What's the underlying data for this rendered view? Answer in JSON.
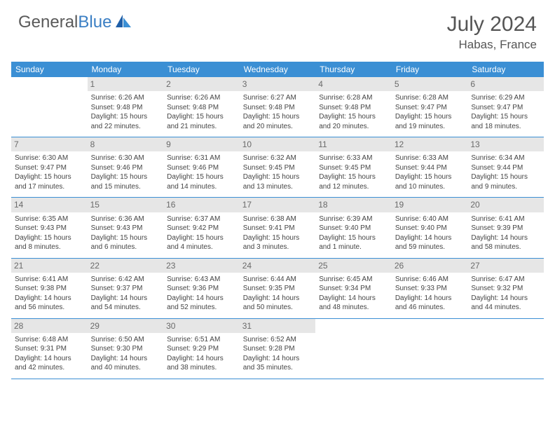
{
  "brand": {
    "name_a": "General",
    "name_b": "Blue"
  },
  "title": "July 2024",
  "location": "Habas, France",
  "colors": {
    "header_bg": "#3b8fd4",
    "header_text": "#ffffff",
    "daynum_bg": "#e6e6e6",
    "daynum_text": "#6a6a6a",
    "body_text": "#444444",
    "rule": "#3b8fd4",
    "brand_gray": "#5a5a5a",
    "brand_blue": "#3b7fc4"
  },
  "day_headers": [
    "Sunday",
    "Monday",
    "Tuesday",
    "Wednesday",
    "Thursday",
    "Friday",
    "Saturday"
  ],
  "weeks": [
    [
      {
        "n": "",
        "sunrise": "",
        "sunset": "",
        "daylight": ""
      },
      {
        "n": "1",
        "sunrise": "Sunrise: 6:26 AM",
        "sunset": "Sunset: 9:48 PM",
        "daylight": "Daylight: 15 hours and 22 minutes."
      },
      {
        "n": "2",
        "sunrise": "Sunrise: 6:26 AM",
        "sunset": "Sunset: 9:48 PM",
        "daylight": "Daylight: 15 hours and 21 minutes."
      },
      {
        "n": "3",
        "sunrise": "Sunrise: 6:27 AM",
        "sunset": "Sunset: 9:48 PM",
        "daylight": "Daylight: 15 hours and 20 minutes."
      },
      {
        "n": "4",
        "sunrise": "Sunrise: 6:28 AM",
        "sunset": "Sunset: 9:48 PM",
        "daylight": "Daylight: 15 hours and 20 minutes."
      },
      {
        "n": "5",
        "sunrise": "Sunrise: 6:28 AM",
        "sunset": "Sunset: 9:47 PM",
        "daylight": "Daylight: 15 hours and 19 minutes."
      },
      {
        "n": "6",
        "sunrise": "Sunrise: 6:29 AM",
        "sunset": "Sunset: 9:47 PM",
        "daylight": "Daylight: 15 hours and 18 minutes."
      }
    ],
    [
      {
        "n": "7",
        "sunrise": "Sunrise: 6:30 AM",
        "sunset": "Sunset: 9:47 PM",
        "daylight": "Daylight: 15 hours and 17 minutes."
      },
      {
        "n": "8",
        "sunrise": "Sunrise: 6:30 AM",
        "sunset": "Sunset: 9:46 PM",
        "daylight": "Daylight: 15 hours and 15 minutes."
      },
      {
        "n": "9",
        "sunrise": "Sunrise: 6:31 AM",
        "sunset": "Sunset: 9:46 PM",
        "daylight": "Daylight: 15 hours and 14 minutes."
      },
      {
        "n": "10",
        "sunrise": "Sunrise: 6:32 AM",
        "sunset": "Sunset: 9:45 PM",
        "daylight": "Daylight: 15 hours and 13 minutes."
      },
      {
        "n": "11",
        "sunrise": "Sunrise: 6:33 AM",
        "sunset": "Sunset: 9:45 PM",
        "daylight": "Daylight: 15 hours and 12 minutes."
      },
      {
        "n": "12",
        "sunrise": "Sunrise: 6:33 AM",
        "sunset": "Sunset: 9:44 PM",
        "daylight": "Daylight: 15 hours and 10 minutes."
      },
      {
        "n": "13",
        "sunrise": "Sunrise: 6:34 AM",
        "sunset": "Sunset: 9:44 PM",
        "daylight": "Daylight: 15 hours and 9 minutes."
      }
    ],
    [
      {
        "n": "14",
        "sunrise": "Sunrise: 6:35 AM",
        "sunset": "Sunset: 9:43 PM",
        "daylight": "Daylight: 15 hours and 8 minutes."
      },
      {
        "n": "15",
        "sunrise": "Sunrise: 6:36 AM",
        "sunset": "Sunset: 9:43 PM",
        "daylight": "Daylight: 15 hours and 6 minutes."
      },
      {
        "n": "16",
        "sunrise": "Sunrise: 6:37 AM",
        "sunset": "Sunset: 9:42 PM",
        "daylight": "Daylight: 15 hours and 4 minutes."
      },
      {
        "n": "17",
        "sunrise": "Sunrise: 6:38 AM",
        "sunset": "Sunset: 9:41 PM",
        "daylight": "Daylight: 15 hours and 3 minutes."
      },
      {
        "n": "18",
        "sunrise": "Sunrise: 6:39 AM",
        "sunset": "Sunset: 9:40 PM",
        "daylight": "Daylight: 15 hours and 1 minute."
      },
      {
        "n": "19",
        "sunrise": "Sunrise: 6:40 AM",
        "sunset": "Sunset: 9:40 PM",
        "daylight": "Daylight: 14 hours and 59 minutes."
      },
      {
        "n": "20",
        "sunrise": "Sunrise: 6:41 AM",
        "sunset": "Sunset: 9:39 PM",
        "daylight": "Daylight: 14 hours and 58 minutes."
      }
    ],
    [
      {
        "n": "21",
        "sunrise": "Sunrise: 6:41 AM",
        "sunset": "Sunset: 9:38 PM",
        "daylight": "Daylight: 14 hours and 56 minutes."
      },
      {
        "n": "22",
        "sunrise": "Sunrise: 6:42 AM",
        "sunset": "Sunset: 9:37 PM",
        "daylight": "Daylight: 14 hours and 54 minutes."
      },
      {
        "n": "23",
        "sunrise": "Sunrise: 6:43 AM",
        "sunset": "Sunset: 9:36 PM",
        "daylight": "Daylight: 14 hours and 52 minutes."
      },
      {
        "n": "24",
        "sunrise": "Sunrise: 6:44 AM",
        "sunset": "Sunset: 9:35 PM",
        "daylight": "Daylight: 14 hours and 50 minutes."
      },
      {
        "n": "25",
        "sunrise": "Sunrise: 6:45 AM",
        "sunset": "Sunset: 9:34 PM",
        "daylight": "Daylight: 14 hours and 48 minutes."
      },
      {
        "n": "26",
        "sunrise": "Sunrise: 6:46 AM",
        "sunset": "Sunset: 9:33 PM",
        "daylight": "Daylight: 14 hours and 46 minutes."
      },
      {
        "n": "27",
        "sunrise": "Sunrise: 6:47 AM",
        "sunset": "Sunset: 9:32 PM",
        "daylight": "Daylight: 14 hours and 44 minutes."
      }
    ],
    [
      {
        "n": "28",
        "sunrise": "Sunrise: 6:48 AM",
        "sunset": "Sunset: 9:31 PM",
        "daylight": "Daylight: 14 hours and 42 minutes."
      },
      {
        "n": "29",
        "sunrise": "Sunrise: 6:50 AM",
        "sunset": "Sunset: 9:30 PM",
        "daylight": "Daylight: 14 hours and 40 minutes."
      },
      {
        "n": "30",
        "sunrise": "Sunrise: 6:51 AM",
        "sunset": "Sunset: 9:29 PM",
        "daylight": "Daylight: 14 hours and 38 minutes."
      },
      {
        "n": "31",
        "sunrise": "Sunrise: 6:52 AM",
        "sunset": "Sunset: 9:28 PM",
        "daylight": "Daylight: 14 hours and 35 minutes."
      },
      {
        "n": "",
        "sunrise": "",
        "sunset": "",
        "daylight": ""
      },
      {
        "n": "",
        "sunrise": "",
        "sunset": "",
        "daylight": ""
      },
      {
        "n": "",
        "sunrise": "",
        "sunset": "",
        "daylight": ""
      }
    ]
  ]
}
